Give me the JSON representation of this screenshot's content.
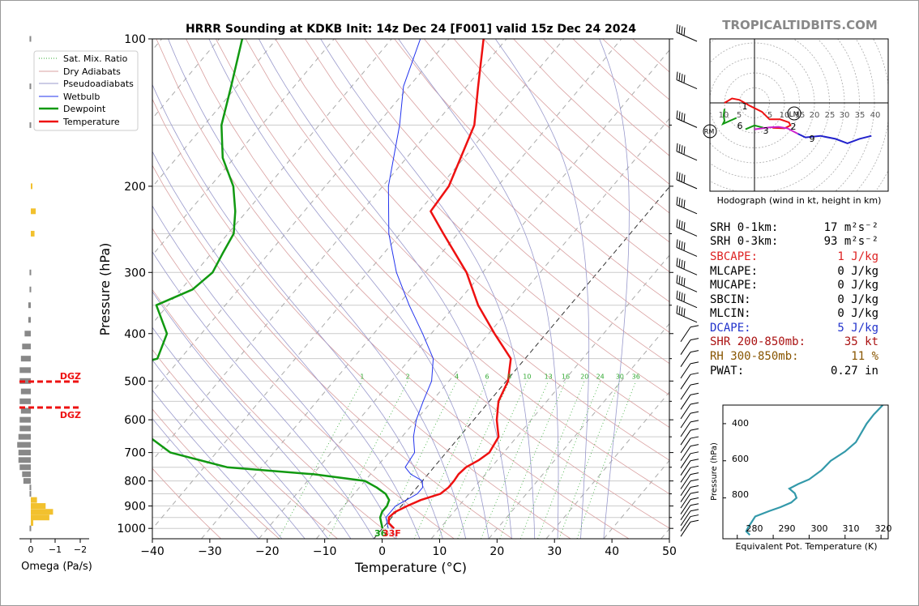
{
  "header": {
    "title": "HRRR Sounding at KDKB Init: 14z Dec 24 [F001] valid 15z Dec 24 2024",
    "brand": "TROPICALTIDBITS.COM"
  },
  "skewt": {
    "ylabel": "Pressure (hPa)",
    "xlabel": "Temperature (°C)",
    "pressure_ticks": [
      "100",
      "200",
      "300",
      "400",
      "500",
      "600",
      "700",
      "800",
      "900",
      "1000"
    ],
    "temp_ticks": [
      "−40",
      "−30",
      "−20",
      "−10",
      "0",
      "10",
      "20",
      "30",
      "40",
      "50"
    ],
    "mixing_ratio_labels": [
      "1",
      "2",
      "4",
      "6",
      "8",
      "10",
      "13",
      "16",
      "20",
      "24",
      "30",
      "36"
    ],
    "sfc_dewpoint_label": "36",
    "sfc_temp_label": "33F",
    "legend": [
      "Sat. Mix. Ratio",
      "Dry Adiabats",
      "Pseudoadiabats",
      "Wetbulb",
      "Dewpoint",
      "Temperature"
    ],
    "colors": {
      "temperature": "#ee1111",
      "dewpoint": "#119911",
      "wetbulb": "#2233ee",
      "dry_adiabat": "#d9a0a0",
      "pseudoadiabat": "#9999cc",
      "mixing_ratio": "#33aa33",
      "isotherm_zero": "#444444"
    }
  },
  "omega": {
    "xlabel": "Omega (Pa/s)",
    "ticks": [
      "0",
      "−1",
      "−2"
    ],
    "dgz_label": "DGZ"
  },
  "hodograph": {
    "caption": "Hodograph (wind in kt, height in km)",
    "ring_labels": [
      "10",
      "5",
      "5",
      "10",
      "15",
      "20",
      "25",
      "30",
      "35",
      "40"
    ],
    "markers": {
      "lm": "LM",
      "rm": "RM"
    },
    "height_labels": [
      "1",
      "2",
      "3",
      "6",
      "9"
    ]
  },
  "indices": [
    {
      "label": "SRH 0-1km:",
      "value": "17 m²s⁻²",
      "color": "#000000"
    },
    {
      "label": "SRH 0-3km:",
      "value": "93 m²s⁻²",
      "color": "#000000"
    },
    {
      "label": "SBCAPE:",
      "value": "1 J/kg",
      "color": "#dd2222"
    },
    {
      "label": "MLCAPE:",
      "value": "0 J/kg",
      "color": "#000000"
    },
    {
      "label": "MUCAPE:",
      "value": "0 J/kg",
      "color": "#000000"
    },
    {
      "label": "SBCIN:",
      "value": "0 J/kg",
      "color": "#000000"
    },
    {
      "label": "MLCIN:",
      "value": "0 J/kg",
      "color": "#000000"
    },
    {
      "label": "DCAPE:",
      "value": "5 J/kg",
      "color": "#2233cc"
    },
    {
      "label": "SHR 200-850mb:",
      "value": "35 kt",
      "color": "#aa1111"
    },
    {
      "label": "RH 300-850mb:",
      "value": "11 %",
      "color": "#885500"
    },
    {
      "label": "PWAT:",
      "value": "0.27 in",
      "color": "#000000"
    }
  ],
  "theta_e_panel": {
    "ylabel": "Pressure (hPa)",
    "xlabel": "Equivalent Pot. Temperature (K)",
    "xticks": [
      "280",
      "290",
      "300",
      "310",
      "320"
    ],
    "yticks": [
      "400",
      "600",
      "800"
    ],
    "color": "#3399aa"
  },
  "chart_data": [
    {
      "type": "line",
      "title": "HRRR Sounding at KDKB Init: 14z Dec 24 [F001] valid 15z Dec 24 2024",
      "xlabel": "Temperature (°C)",
      "ylabel": "Pressure (hPa)",
      "xlim": [
        -40,
        50
      ],
      "ylim": [
        1050,
        100
      ],
      "yscale": "log",
      "skew": "skewed isotherms",
      "series": [
        {
          "name": "Temperature",
          "points": [
            [
              1000,
              2.0
            ],
            [
              975,
              0.3
            ],
            [
              950,
              -0.5
            ],
            [
              925,
              -0.2
            ],
            [
              900,
              1.0
            ],
            [
              875,
              2.5
            ],
            [
              850,
              5.0
            ],
            [
              825,
              5.5
            ],
            [
              800,
              5.5
            ],
            [
              775,
              5.3
            ],
            [
              750,
              5.6
            ],
            [
              725,
              6.8
            ],
            [
              700,
              7.5
            ],
            [
              650,
              6.8
            ],
            [
              600,
              4.0
            ],
            [
              550,
              1.6
            ],
            [
              500,
              0.3
            ],
            [
              450,
              -2.5
            ],
            [
              400,
              -9.0
            ],
            [
              350,
              -16.0
            ],
            [
              300,
              -22.8
            ],
            [
              250,
              -32.5
            ],
            [
              225,
              -38.0
            ],
            [
              200,
              -38.5
            ],
            [
              150,
              -43.0
            ],
            [
              125,
              -48.0
            ],
            [
              100,
              -54.0
            ]
          ]
        },
        {
          "name": "Dewpoint",
          "points": [
            [
              1000,
              0.0
            ],
            [
              975,
              -1.0
            ],
            [
              950,
              -2.0
            ],
            [
              925,
              -2.5
            ],
            [
              900,
              -2.5
            ],
            [
              875,
              -3.0
            ],
            [
              850,
              -4.5
            ],
            [
              825,
              -7.0
            ],
            [
              800,
              -10.0
            ],
            [
              775,
              -20.0
            ],
            [
              750,
              -36.0
            ],
            [
              700,
              -48.0
            ],
            [
              650,
              -54.0
            ],
            [
              600,
              -58.0
            ],
            [
              575,
              -58.0
            ],
            [
              550,
              -60.0
            ],
            [
              500,
              -68.0
            ],
            [
              475,
              -70.0
            ],
            [
              450,
              -64.0
            ],
            [
              400,
              -66.0
            ],
            [
              350,
              -72.0
            ],
            [
              325,
              -68.0
            ],
            [
              300,
              -67.0
            ],
            [
              275,
              -68.0
            ],
            [
              250,
              -69.0
            ],
            [
              225,
              -72.0
            ],
            [
              200,
              -76.0
            ],
            [
              175,
              -82.0
            ],
            [
              150,
              -87.0
            ],
            [
              125,
              -91.0
            ],
            [
              100,
              -96.0
            ]
          ]
        },
        {
          "name": "Wetbulb",
          "points": [
            [
              1000,
              1.0
            ],
            [
              950,
              -1.0
            ],
            [
              900,
              -1.0
            ],
            [
              875,
              0.0
            ],
            [
              850,
              1.0
            ],
            [
              825,
              1.0
            ],
            [
              800,
              0.0
            ],
            [
              775,
              -3.0
            ],
            [
              750,
              -5.0
            ],
            [
              700,
              -5.5
            ],
            [
              650,
              -8.0
            ],
            [
              600,
              -10.0
            ],
            [
              550,
              -11.5
            ],
            [
              500,
              -13.0
            ],
            [
              450,
              -16.0
            ],
            [
              400,
              -21.5
            ],
            [
              350,
              -28.0
            ],
            [
              300,
              -35.0
            ],
            [
              250,
              -42.0
            ],
            [
              200,
              -49.0
            ],
            [
              150,
              -56.0
            ],
            [
              125,
              -61.0
            ],
            [
              100,
              -65.0
            ]
          ]
        }
      ]
    },
    {
      "type": "bar",
      "title": "",
      "xlabel": "Omega (Pa/s)",
      "ylabel": "",
      "xlim": [
        0.5,
        -2.2
      ],
      "series": [
        {
          "name": "",
          "points": [
            [
              1000,
              0.05
            ],
            [
              975,
              -0.1
            ],
            [
              950,
              -0.75
            ],
            [
              925,
              -0.9
            ],
            [
              900,
              -0.6
            ],
            [
              875,
              -0.25
            ],
            [
              850,
              0.05
            ],
            [
              825,
              0.05
            ],
            [
              800,
              0.3
            ],
            [
              775,
              0.35
            ],
            [
              750,
              0.45
            ],
            [
              725,
              0.5
            ],
            [
              700,
              0.5
            ],
            [
              675,
              0.55
            ],
            [
              650,
              0.5
            ],
            [
              625,
              0.45
            ],
            [
              600,
              0.45
            ],
            [
              575,
              0.4
            ],
            [
              550,
              0.45
            ],
            [
              525,
              0.4
            ],
            [
              500,
              0.45
            ],
            [
              475,
              0.45
            ],
            [
              450,
              0.4
            ],
            [
              425,
              0.35
            ],
            [
              400,
              0.25
            ],
            [
              375,
              0.1
            ],
            [
              350,
              0.1
            ],
            [
              325,
              0.05
            ],
            [
              300,
              0.05
            ],
            [
              250,
              -0.15
            ],
            [
              225,
              -0.2
            ],
            [
              200,
              -0.05
            ],
            [
              150,
              0.05
            ],
            [
              125,
              0.05
            ],
            [
              100,
              0.05
            ]
          ]
        }
      ],
      "dgz_top": 500,
      "dgz_bottom": 570
    },
    {
      "type": "line",
      "title": "",
      "xlabel": "Equivalent Pot. Temperature (K)",
      "ylabel": "Pressure (hPa)",
      "xlim": [
        276,
        322
      ],
      "ylim": [
        1020,
        300
      ],
      "series": [
        {
          "name": "",
          "points": [
            [
              1000,
              283.5
            ],
            [
              980,
              282.5
            ],
            [
              960,
              283.0
            ],
            [
              930,
              284.0
            ],
            [
              900,
              285.0
            ],
            [
              870,
              289.0
            ],
            [
              850,
              292.0
            ],
            [
              825,
              295.0
            ],
            [
              800,
              296.5
            ],
            [
              775,
              296.0
            ],
            [
              750,
              294.5
            ],
            [
              725,
              297.0
            ],
            [
              700,
              300.0
            ],
            [
              650,
              303.5
            ],
            [
              600,
              306.0
            ],
            [
              550,
              310.0
            ],
            [
              500,
              313.0
            ],
            [
              450,
              314.5
            ],
            [
              400,
              316.0
            ],
            [
              350,
              318.0
            ],
            [
              300,
              320.5
            ]
          ]
        }
      ]
    },
    {
      "type": "scatter",
      "title": "",
      "xlabel": "",
      "ylabel": "",
      "xlim": [
        -15,
        45
      ],
      "ylim": [
        -30,
        22
      ],
      "series": [
        {
          "name": "",
          "points": [
            [
              -6,
              -5
            ],
            [
              -10.5,
              -7
            ],
            [
              -10,
              -6
            ],
            [
              -10.3,
              -4.2
            ],
            [
              -10,
              -2
            ],
            [
              -10,
              0
            ],
            [
              -7.5,
              1.5
            ],
            [
              -5,
              1
            ],
            [
              -1.5,
              -1
            ],
            [
              2.5,
              -3
            ],
            [
              5,
              -5.5
            ],
            [
              8.5,
              -5.5
            ],
            [
              11.5,
              -6.5
            ],
            [
              12,
              -7.5
            ],
            [
              10,
              -8.5
            ],
            [
              6,
              -8.3
            ],
            [
              3,
              -8.3
            ],
            [
              0,
              -7.5
            ],
            [
              -3,
              -8.8
            ],
            [
              0,
              -8.8
            ],
            [
              5,
              -8.2
            ],
            [
              8,
              -8
            ],
            [
              11,
              -8.5
            ],
            [
              14.5,
              -10.3
            ],
            [
              17,
              -11.5
            ],
            [
              22,
              -11
            ],
            [
              27,
              -12
            ],
            [
              31,
              -13.5
            ],
            [
              35,
              -12
            ],
            [
              39,
              -11
            ]
          ]
        }
      ]
    }
  ]
}
